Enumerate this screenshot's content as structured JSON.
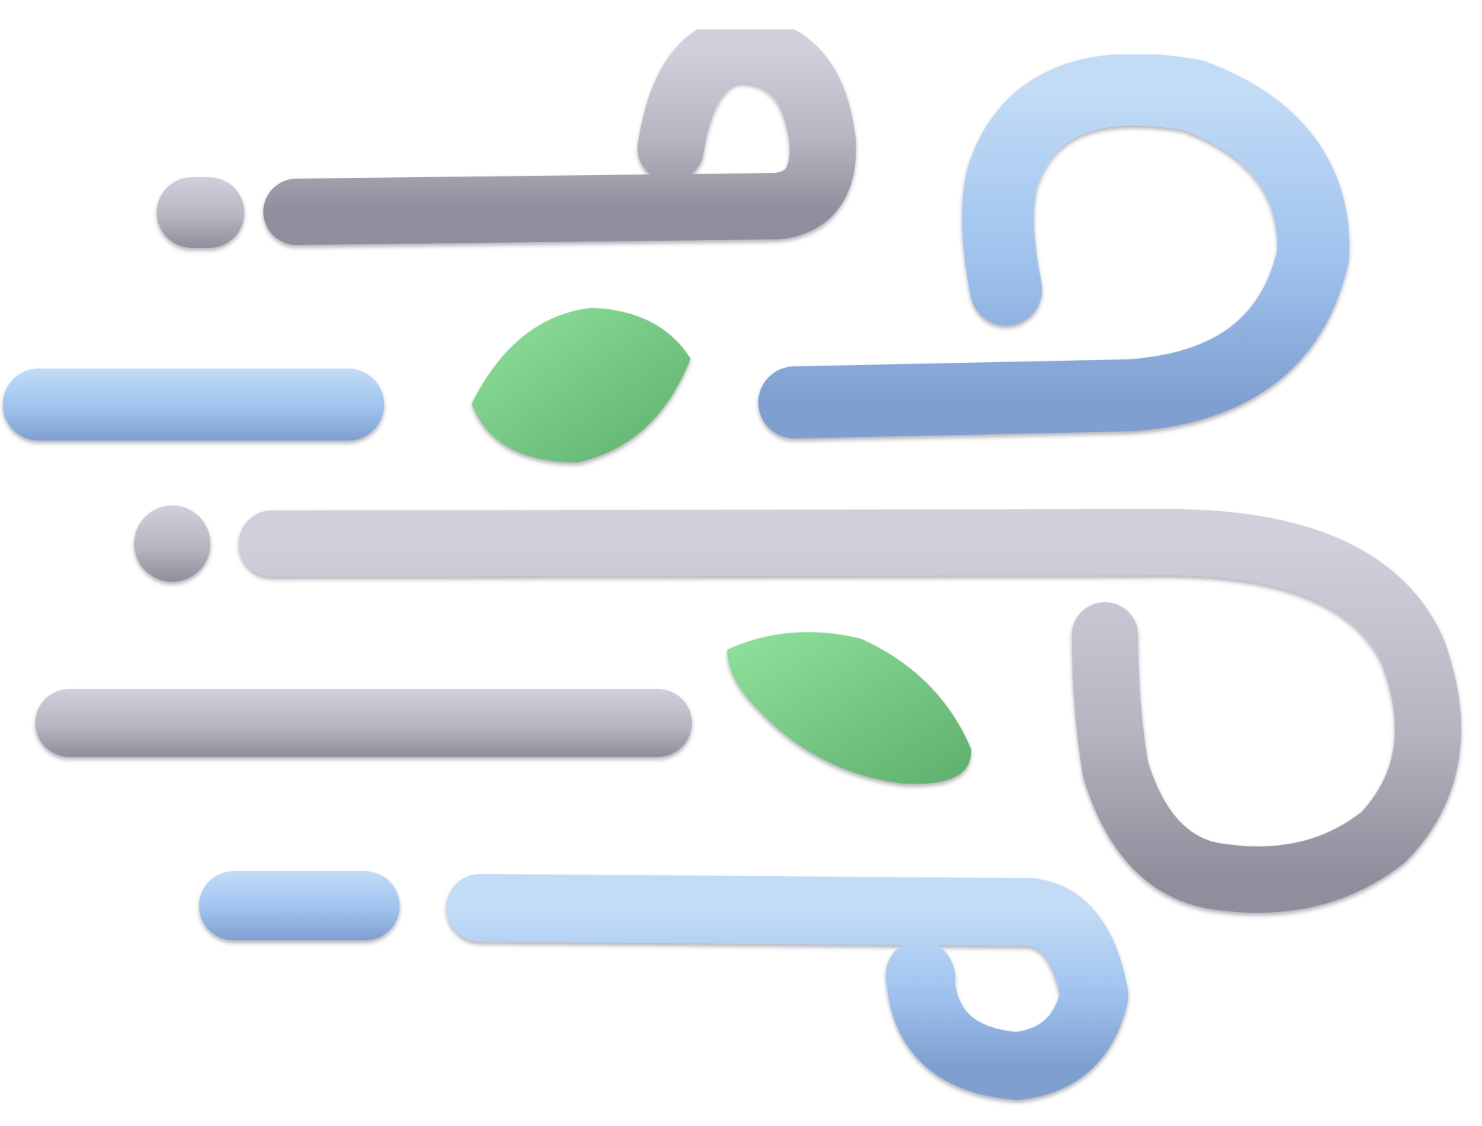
{
  "illustration": {
    "name": "wind-icon",
    "colors": {
      "gray_light": "#d0d0dc",
      "gray_mid": "#b6b6c2",
      "gray_dark": "#6e6e7c",
      "blue_light": "#c2dcf6",
      "blue_mid": "#9fc2ee",
      "blue_dark": "#6f8ec0",
      "green_light": "#8fe29c",
      "green_mid": "#6ebf7d",
      "green_dark": "#3e8a4c"
    }
  }
}
